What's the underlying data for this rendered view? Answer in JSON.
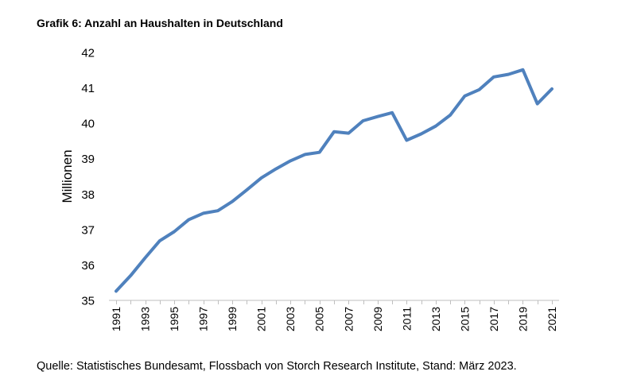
{
  "title": "Grafik 6: Anzahl an Haushalten in Deutschland",
  "source_note": "Quelle: Statistisches Bundesamt, Flossbach von Storch Research Institute, Stand: März 2023.",
  "colors": {
    "line": "#4f81bd",
    "axis": "#bfbfbf",
    "text": "#000000"
  },
  "chart_data": {
    "type": "line",
    "title": "Grafik 6: Anzahl an Haushalten in Deutschland",
    "xlabel": "",
    "ylabel": "Millionen",
    "ylim": [
      35,
      42
    ],
    "yticks": [
      35,
      36,
      37,
      38,
      39,
      40,
      41,
      42
    ],
    "xlim": [
      1991,
      2021
    ],
    "xtick_labels": [
      "1991",
      "1993",
      "1995",
      "1997",
      "1999",
      "2001",
      "2003",
      "2005",
      "2007",
      "2009",
      "2011",
      "2013",
      "2015",
      "2017",
      "2019",
      "2021"
    ],
    "grid": false,
    "legend": "none",
    "x": [
      1991,
      1992,
      1993,
      1994,
      1995,
      1996,
      1997,
      1998,
      1999,
      2000,
      2001,
      2002,
      2003,
      2004,
      2005,
      2006,
      2007,
      2008,
      2009,
      2010,
      2011,
      2012,
      2013,
      2014,
      2015,
      2016,
      2017,
      2018,
      2019,
      2020,
      2021
    ],
    "series": [
      {
        "values": [
          35.26,
          35.7,
          36.2,
          36.68,
          36.94,
          37.28,
          37.46,
          37.53,
          37.79,
          38.12,
          38.46,
          38.71,
          38.94,
          39.12,
          39.18,
          39.76,
          39.72,
          40.07,
          40.19,
          40.3,
          39.52,
          39.7,
          39.92,
          40.23,
          40.77,
          40.95,
          41.31,
          41.38,
          41.51,
          40.55,
          40.97
        ]
      }
    ]
  }
}
